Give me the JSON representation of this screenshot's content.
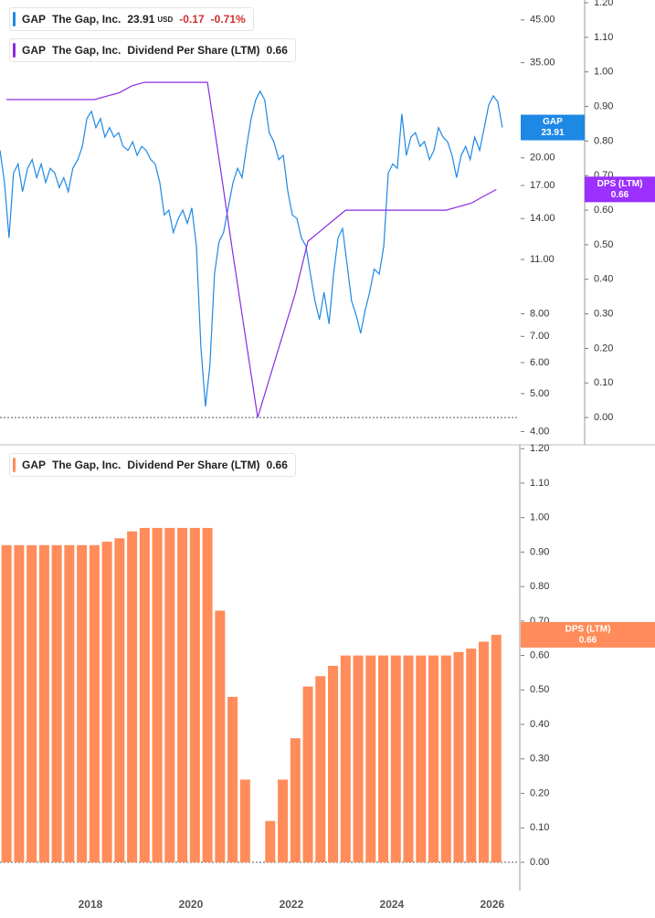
{
  "chart_data": [
    {
      "type": "line",
      "log_scale_y": true,
      "xlim": [
        2016.2,
        2026.53
      ],
      "ylim": [
        3.7,
        50.6
      ],
      "yticks": [
        {
          "value": 45,
          "label": "45.00"
        },
        {
          "value": 35,
          "label": "35.00"
        },
        {
          "value": 20,
          "label": "20.00"
        },
        {
          "value": 17,
          "label": "17.00"
        },
        {
          "value": 14,
          "label": "14.00"
        },
        {
          "value": 11,
          "label": "11.00"
        },
        {
          "value": 8,
          "label": "8.00"
        },
        {
          "value": 7,
          "label": "7.00"
        },
        {
          "value": 6,
          "label": "6.00"
        },
        {
          "value": 5,
          "label": "5.00"
        },
        {
          "value": 4,
          "label": "4.00"
        }
      ],
      "y2lim": [
        -0.079,
        1.208
      ],
      "y2ticks": [
        {
          "value": 0,
          "label": "0.00"
        },
        {
          "value": 0.1,
          "label": "0.10"
        },
        {
          "value": 0.2,
          "label": "0.20"
        },
        {
          "value": 0.3,
          "label": "0.30"
        },
        {
          "value": 0.4,
          "label": "0.40"
        },
        {
          "value": 0.5,
          "label": "0.50"
        },
        {
          "value": 0.6,
          "label": "0.60"
        },
        {
          "value": 0.7,
          "label": "0.70"
        },
        {
          "value": 0.8,
          "label": "0.80"
        },
        {
          "value": 0.9,
          "label": "0.90"
        },
        {
          "value": 1,
          "label": "1.00"
        },
        {
          "value": 1.1,
          "label": "1.10"
        },
        {
          "value": 1.2,
          "label": "1.20"
        }
      ],
      "series": [
        {
          "ticker": "GAP",
          "name": "The Gap, Inc.",
          "color": "#1e88e5",
          "currency": "USD",
          "change": -0.17,
          "change_percent": "-0.71%",
          "x": [
            2016.2,
            2016.29,
            2016.38,
            2016.47,
            2016.56,
            2016.65,
            2016.75,
            2016.84,
            2016.93,
            2017.02,
            2017.11,
            2017.2,
            2017.29,
            2017.38,
            2017.47,
            2017.56,
            2017.65,
            2017.75,
            2017.84,
            2017.93,
            2018.02,
            2018.11,
            2018.2,
            2018.29,
            2018.38,
            2018.47,
            2018.56,
            2018.65,
            2018.75,
            2018.84,
            2018.93,
            2019.02,
            2019.11,
            2019.2,
            2019.29,
            2019.38,
            2019.47,
            2019.56,
            2019.65,
            2019.75,
            2019.84,
            2019.93,
            2020.02,
            2020.11,
            2020.2,
            2020.29,
            2020.38,
            2020.47,
            2020.56,
            2020.65,
            2020.75,
            2020.84,
            2020.93,
            2021.02,
            2021.11,
            2021.2,
            2021.29,
            2021.38,
            2021.47,
            2021.56,
            2021.65,
            2021.75,
            2021.84,
            2021.93,
            2022.02,
            2022.11,
            2022.2,
            2022.29,
            2022.38,
            2022.47,
            2022.56,
            2022.65,
            2022.75,
            2022.84,
            2022.93,
            2023.02,
            2023.11,
            2023.2,
            2023.29,
            2023.38,
            2023.47,
            2023.56,
            2023.65,
            2023.75,
            2023.84,
            2023.93,
            2024.02,
            2024.11,
            2024.2,
            2024.29,
            2024.38,
            2024.47,
            2024.56,
            2024.65,
            2024.75,
            2024.84,
            2024.93,
            2025.02,
            2025.11,
            2025.2,
            2025.29,
            2025.38,
            2025.47,
            2025.56,
            2025.65,
            2025.75,
            2025.84,
            2025.93,
            2026.02,
            2026.11,
            2026.2
          ],
          "values": [
            20.9,
            17.3,
            12.5,
            18.3,
            19.3,
            16.4,
            18.8,
            19.8,
            17.8,
            19.3,
            17.3,
            18.8,
            18.3,
            16.8,
            17.8,
            16.4,
            18.8,
            19.8,
            21.4,
            25.2,
            26.3,
            23.9,
            25.2,
            22.6,
            23.9,
            22.6,
            23.2,
            21.4,
            20.9,
            22.0,
            20.3,
            21.4,
            20.9,
            19.8,
            19.3,
            17.3,
            14.3,
            14.7,
            12.9,
            14.0,
            14.7,
            13.6,
            14.9,
            11.9,
            6.58,
            4.64,
            5.91,
            10.1,
            12.2,
            12.9,
            15.1,
            17.3,
            18.8,
            17.8,
            21.4,
            25.2,
            28.1,
            29.6,
            28.1,
            23.2,
            22.0,
            19.8,
            20.3,
            16.4,
            14.3,
            14.0,
            12.5,
            11.9,
            10.1,
            8.61,
            7.73,
            9.08,
            7.53,
            10.1,
            12.5,
            13.2,
            10.7,
            8.61,
            7.94,
            7.13,
            8.16,
            9.08,
            10.4,
            10.1,
            11.9,
            18.3,
            19.3,
            18.8,
            25.9,
            20.3,
            22.6,
            23.2,
            21.4,
            22.0,
            19.8,
            20.9,
            23.9,
            22.6,
            22.0,
            20.3,
            17.8,
            20.3,
            21.4,
            19.8,
            22.6,
            20.9,
            23.9,
            27.3,
            28.8,
            27.8,
            23.91
          ]
        },
        {
          "ticker": "GAP",
          "name": "The Gap, Inc.",
          "metric": "Dividend Per Share (LTM)",
          "badge_label": "DPS (LTM)",
          "color": "#8a2be2",
          "badge_color": "#9b30ff",
          "axis": "y2",
          "x": [
            2016.33,
            2016.58,
            2016.83,
            2017.08,
            2017.33,
            2017.58,
            2017.83,
            2018.08,
            2018.33,
            2018.58,
            2018.83,
            2019.08,
            2019.33,
            2019.58,
            2019.83,
            2020.08,
            2020.33,
            2020.58,
            2020.83,
            2021.08,
            2021.33,
            2021.58,
            2021.83,
            2022.08,
            2022.33,
            2022.58,
            2022.83,
            2023.08,
            2023.33,
            2023.58,
            2023.83,
            2024.08,
            2024.33,
            2024.58,
            2024.83,
            2025.08,
            2025.33,
            2025.58,
            2025.83,
            2026.08
          ],
          "values": [
            0.92,
            0.92,
            0.92,
            0.92,
            0.92,
            0.92,
            0.92,
            0.92,
            0.93,
            0.94,
            0.96,
            0.97,
            0.97,
            0.97,
            0.97,
            0.97,
            0.97,
            0.73,
            0.48,
            0.24,
            0,
            0.12,
            0.24,
            0.36,
            0.51,
            0.54,
            0.57,
            0.6,
            0.6,
            0.6,
            0.6,
            0.6,
            0.6,
            0.6,
            0.6,
            0.6,
            0.61,
            0.62,
            0.64,
            0.66
          ]
        }
      ]
    },
    {
      "type": "bar",
      "xlim": [
        2016.2,
        2026.53
      ],
      "xticks": [
        2018,
        2020,
        2022,
        2024,
        2026
      ],
      "ylim": [
        -0.082,
        1.211
      ],
      "yticks": [
        {
          "value": 0,
          "label": "0.00"
        },
        {
          "value": 0.1,
          "label": "0.10"
        },
        {
          "value": 0.2,
          "label": "0.20"
        },
        {
          "value": 0.3,
          "label": "0.30"
        },
        {
          "value": 0.4,
          "label": "0.40"
        },
        {
          "value": 0.5,
          "label": "0.50"
        },
        {
          "value": 0.6,
          "label": "0.60"
        },
        {
          "value": 0.7,
          "label": "0.70"
        },
        {
          "value": 0.8,
          "label": "0.80"
        },
        {
          "value": 0.9,
          "label": "0.90"
        },
        {
          "value": 1,
          "label": "1.00"
        },
        {
          "value": 1.1,
          "label": "1.10"
        },
        {
          "value": 1.2,
          "label": "1.20"
        }
      ],
      "series": [
        {
          "ticker": "GAP",
          "name": "The Gap, Inc.",
          "metric": "Dividend Per Share (LTM)",
          "badge_label": "DPS (LTM)",
          "color": "#ff8c5a",
          "x": [
            2016.33,
            2016.58,
            2016.83,
            2017.08,
            2017.33,
            2017.58,
            2017.83,
            2018.08,
            2018.33,
            2018.58,
            2018.83,
            2019.08,
            2019.33,
            2019.58,
            2019.83,
            2020.08,
            2020.33,
            2020.58,
            2020.83,
            2021.08,
            2021.33,
            2021.58,
            2021.83,
            2022.08,
            2022.33,
            2022.58,
            2022.83,
            2023.08,
            2023.33,
            2023.58,
            2023.83,
            2024.08,
            2024.33,
            2024.58,
            2024.83,
            2025.08,
            2025.33,
            2025.58,
            2025.83,
            2026.08
          ],
          "values": [
            0.92,
            0.92,
            0.92,
            0.92,
            0.92,
            0.92,
            0.92,
            0.92,
            0.93,
            0.94,
            0.96,
            0.97,
            0.97,
            0.97,
            0.97,
            0.97,
            0.97,
            0.73,
            0.48,
            0.24,
            0,
            0.12,
            0.24,
            0.36,
            0.51,
            0.54,
            0.57,
            0.6,
            0.6,
            0.6,
            0.6,
            0.6,
            0.6,
            0.6,
            0.6,
            0.6,
            0.61,
            0.62,
            0.64,
            0.66
          ]
        }
      ]
    }
  ]
}
